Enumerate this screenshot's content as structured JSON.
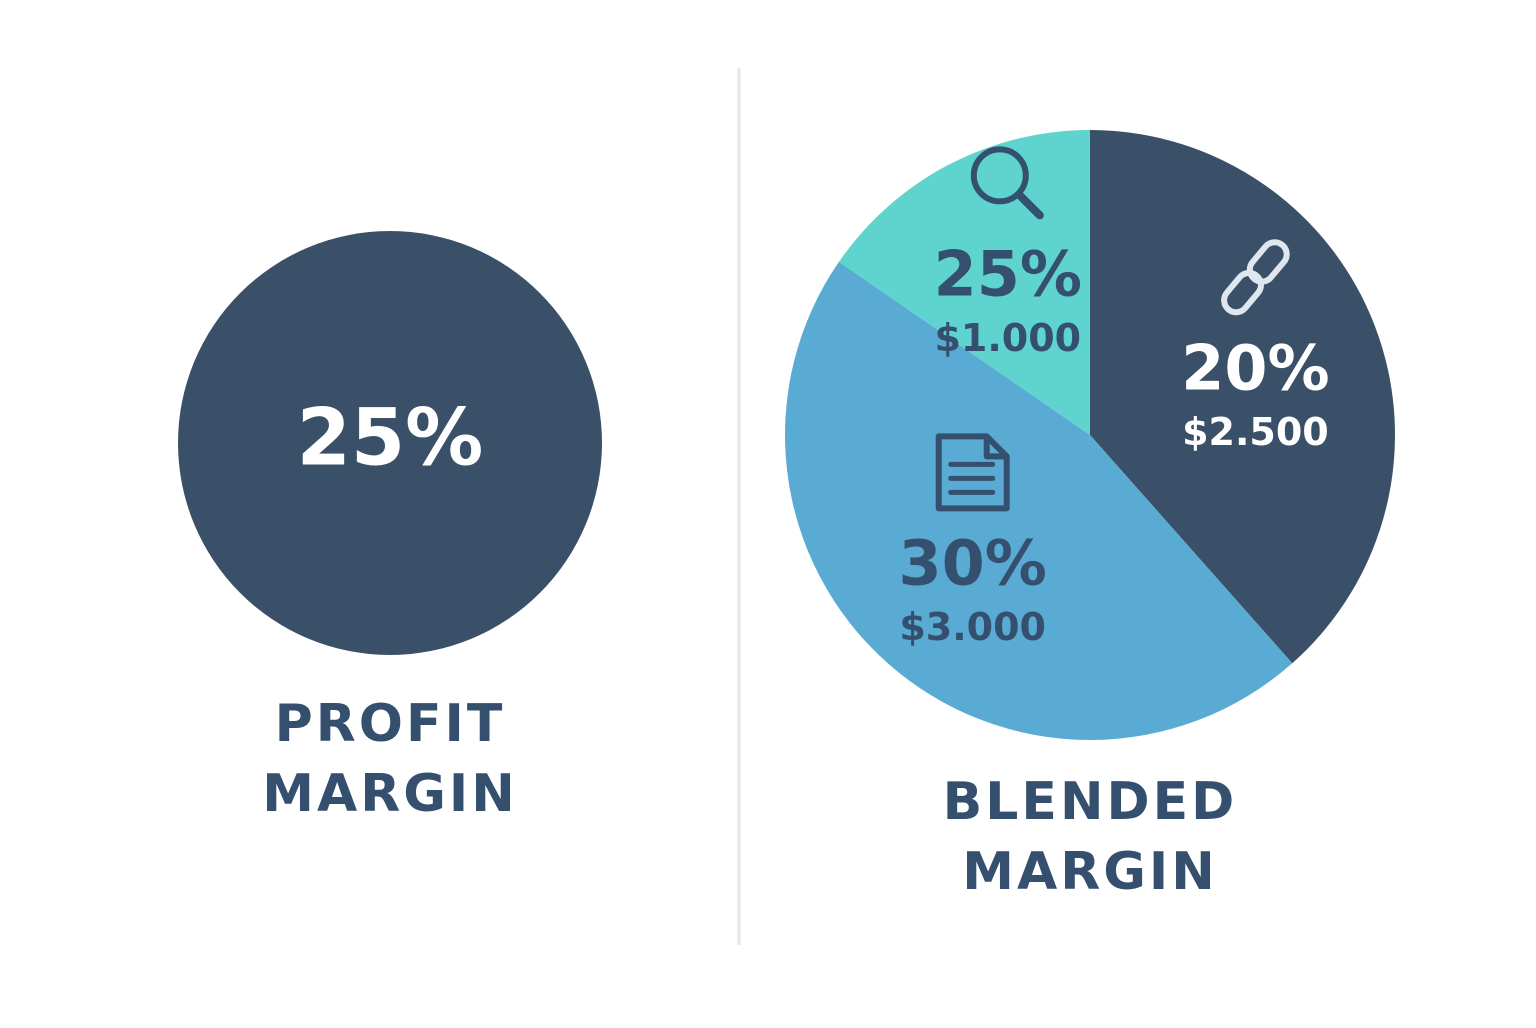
{
  "chart_data": [
    {
      "type": "kpi",
      "title_lines": [
        "PROFIT",
        "MARGIN"
      ],
      "values": [
        25
      ],
      "value_labels": [
        "25%"
      ],
      "color": "#3a5069"
    },
    {
      "type": "pie",
      "title_lines": [
        "BLENDED",
        "MARGIN"
      ],
      "values": [
        2500,
        3000,
        1000
      ],
      "value_labels": [
        "$2.500",
        "$3.000",
        "$1.000"
      ],
      "margins": [
        20,
        30,
        25
      ],
      "margin_labels": [
        "20%",
        "30%",
        "25%"
      ],
      "colors": [
        "#3a5069",
        "#5aabd4",
        "#5fd4cf"
      ],
      "label_colors": [
        "#ffffff",
        "#34506e",
        "#34506e"
      ],
      "icons": [
        "link",
        "document",
        "search"
      ]
    }
  ]
}
